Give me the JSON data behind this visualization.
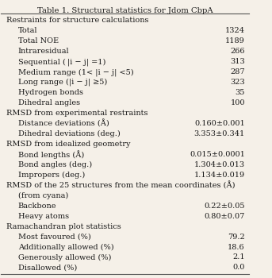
{
  "title": "Table 1. Structural statistics for Jdom CbpA",
  "bg_color": "#f5f0e8",
  "rows": [
    {
      "label": "Restraints for structure calculations",
      "value": "",
      "indent": 0
    },
    {
      "label": "Total",
      "value": "1324",
      "indent": 1
    },
    {
      "label": "Total NOE",
      "value": "1189",
      "indent": 1
    },
    {
      "label": "Intraresidual",
      "value": "266",
      "indent": 1
    },
    {
      "label": "Sequential ( |i − j| =1)",
      "value": "313",
      "indent": 1
    },
    {
      "label": "Medium range (1< |i − j| <5)",
      "value": "287",
      "indent": 1
    },
    {
      "label": "Long range (|i − j| ≥5)",
      "value": "323",
      "indent": 1
    },
    {
      "label": "Hydrogen bonds",
      "value": "35",
      "indent": 1
    },
    {
      "label": "Dihedral angles",
      "value": "100",
      "indent": 1
    },
    {
      "label": "RMSD from experimental restraints",
      "value": "",
      "indent": 0
    },
    {
      "label": "Distance deviations (Å)",
      "value": "0.160±0.001",
      "indent": 1
    },
    {
      "label": "Dihedral deviations (deg.)",
      "value": "3.353±0.341",
      "indent": 1
    },
    {
      "label": "RMSD from idealized geometry",
      "value": "",
      "indent": 0
    },
    {
      "label": "Bond lengths (Å)",
      "value": "0.015±0.0001",
      "indent": 1
    },
    {
      "label": "Bond angles (deg.)",
      "value": "1.304±0.013",
      "indent": 1
    },
    {
      "label": "Impropers (deg.)",
      "value": "1.134±0.019",
      "indent": 1
    },
    {
      "label": "RMSD of the 25 structures from the mean coordinates (Å)",
      "value": "",
      "indent": 0
    },
    {
      "label": "(from cyana)",
      "value": "",
      "indent": 1
    },
    {
      "label": "Backbone",
      "value": "0.22±0.05",
      "indent": 1
    },
    {
      "label": "Heavy atoms",
      "value": "0.80±0.07",
      "indent": 1
    },
    {
      "label": "Ramachandran plot statistics",
      "value": "",
      "indent": 0
    },
    {
      "label": "Most favoured (%)",
      "value": "79.2",
      "indent": 1
    },
    {
      "label": "Additionally allowed (%)",
      "value": "18.6",
      "indent": 1
    },
    {
      "label": "Generously allowed (%)",
      "value": "2.1",
      "indent": 1
    },
    {
      "label": "Disallowed (%)",
      "value": "0.0",
      "indent": 1
    }
  ],
  "font_size": 7.0,
  "title_font_size": 7.2,
  "text_color": "#1a1a1a",
  "line_color": "#555555"
}
